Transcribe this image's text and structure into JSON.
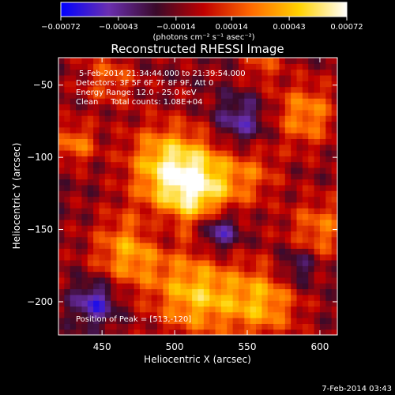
{
  "chart_data": {
    "type": "heatmap",
    "title": "Reconstructed RHESSI Image",
    "xlabel": "Heliocentric X (arcsec)",
    "ylabel": "Heliocentric Y (arcsec)",
    "xlim": [
      420,
      612
    ],
    "ylim": [
      -223,
      -31
    ],
    "x_ticks": [
      450,
      500,
      550,
      600
    ],
    "y_ticks": [
      -50,
      -100,
      -150,
      -200
    ],
    "x_tick_labels": [
      "450",
      "500",
      "550",
      "600"
    ],
    "y_tick_labels": [
      "−50",
      "−100",
      "−150",
      "−200"
    ],
    "colorbar": {
      "range": [
        -0.00072,
        0.00072
      ],
      "ticks": [
        -0.00072,
        -0.00043,
        -0.00014,
        0.00014,
        0.00043,
        0.00072
      ],
      "tick_labels": [
        "−0.00072",
        "−0.00043",
        "−0.00014",
        "0.00014",
        "0.00043",
        "0.00072"
      ],
      "unit_label": "(photons cm⁻² s⁻¹ asec⁻²)",
      "colors": [
        "#0000ff",
        "#6a2fb0",
        "#3a0a2a",
        "#c00000",
        "#ff6a00",
        "#ffd200",
        "#ffffff"
      ]
    },
    "annotations": {
      "time_range": "5-Feb-2014 21:34:44.000 to 21:39:54.000",
      "detectors": "Detectors: 3F 5F 6F 7F 8F 9F, Att 0",
      "energy": "Energy Range: 12.0 - 25.0 keV",
      "clean": "Clean     Total counts: 1.08E+04",
      "peak": "Position of Peak = [513,-120]"
    },
    "peak": {
      "x": 513,
      "y": -120
    },
    "blobs": [
      {
        "x": 513,
        "y": -120,
        "r": 30,
        "a": 1.25
      },
      {
        "x": 490,
        "y": -100,
        "r": 25,
        "a": 0.55
      },
      {
        "x": 470,
        "y": -165,
        "r": 25,
        "a": 0.75
      },
      {
        "x": 515,
        "y": -195,
        "r": 28,
        "a": 0.85
      },
      {
        "x": 560,
        "y": -200,
        "r": 25,
        "a": 0.75
      },
      {
        "x": 590,
        "y": -70,
        "r": 22,
        "a": 0.65
      },
      {
        "x": 600,
        "y": -150,
        "r": 22,
        "a": 0.55
      },
      {
        "x": 432,
        "y": -90,
        "r": 14,
        "a": 0.6
      },
      {
        "x": 455,
        "y": -45,
        "r": 18,
        "a": 0.45
      },
      {
        "x": 555,
        "y": -110,
        "r": 18,
        "a": 0.35
      },
      {
        "x": 560,
        "y": -35,
        "r": 14,
        "a": 0.4
      },
      {
        "x": 530,
        "y": -150,
        "r": 15,
        "a": -0.85
      },
      {
        "x": 445,
        "y": -200,
        "r": 15,
        "a": -0.7
      },
      {
        "x": 545,
        "y": -75,
        "r": 18,
        "a": -0.55
      },
      {
        "x": 490,
        "y": -150,
        "r": 16,
        "a": -0.45
      },
      {
        "x": 585,
        "y": -175,
        "r": 14,
        "a": -0.5
      }
    ]
  },
  "footer": {
    "date": "7-Feb-2014 03:43"
  }
}
